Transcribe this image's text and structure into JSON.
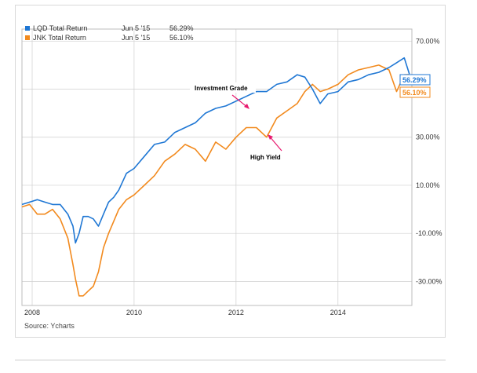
{
  "source_label": "Source: Ycharts",
  "legend": [
    {
      "name": "LQD Total Return",
      "date": "Jun 5 '15",
      "value": "56.29%",
      "color": "#1f77d4"
    },
    {
      "name": "JNK Total Return",
      "date": "Jun 5 '15",
      "value": "56.10%",
      "color": "#f28a1e"
    }
  ],
  "end_badges": {
    "lqd": "56.29%",
    "jnk": "56.10%"
  },
  "annotations": {
    "investment_grade": "Investment Grade",
    "high_yield": "High Yield"
  },
  "colors": {
    "lqd": "#1f77d4",
    "jnk": "#f28a1e",
    "arrow": "#e8196e",
    "grid": "#cfcfcf"
  },
  "chart_data": {
    "type": "line",
    "title": "",
    "xlabel": "",
    "ylabel": "",
    "x_range": [
      2007.8,
      2015.45
    ],
    "ylim": [
      -40,
      75
    ],
    "grid": true,
    "y_ticks": [
      70,
      50,
      30,
      10,
      -10,
      -30
    ],
    "y_tick_labels": [
      "70.00%",
      "",
      "30.00%",
      "10.00%",
      "-10.00%",
      "-30.00%"
    ],
    "x_ticks": [
      2008,
      2010,
      2012,
      2014
    ],
    "x_tick_labels": [
      "2008",
      "2010",
      "2012",
      "2014"
    ],
    "series": [
      {
        "name": "LQD Total Return",
        "x": [
          2007.8,
          2007.95,
          2008.1,
          2008.25,
          2008.4,
          2008.55,
          2008.7,
          2008.8,
          2008.85,
          2008.92,
          2009.0,
          2009.1,
          2009.2,
          2009.3,
          2009.4,
          2009.5,
          2009.6,
          2009.7,
          2009.85,
          2010.0,
          2010.2,
          2010.4,
          2010.6,
          2010.8,
          2011.0,
          2011.2,
          2011.4,
          2011.6,
          2011.8,
          2012.0,
          2012.2,
          2012.4,
          2012.6,
          2012.8,
          2013.0,
          2013.2,
          2013.35,
          2013.5,
          2013.65,
          2013.8,
          2014.0,
          2014.2,
          2014.4,
          2014.6,
          2014.8,
          2015.0,
          2015.15,
          2015.3,
          2015.4
        ],
        "y": [
          2,
          3,
          4,
          3,
          2,
          2,
          -2,
          -7,
          -14,
          -10,
          -3,
          -3,
          -4,
          -7,
          -2,
          3,
          5,
          8,
          15,
          17,
          22,
          27,
          28,
          32,
          34,
          36,
          40,
          42,
          43,
          45,
          47,
          49,
          49,
          52,
          53,
          56,
          55,
          50,
          44,
          48,
          49,
          53,
          54,
          56,
          57,
          59,
          61,
          63,
          56.3
        ]
      },
      {
        "name": "JNK Total Return",
        "x": [
          2007.8,
          2007.95,
          2008.1,
          2008.25,
          2008.4,
          2008.55,
          2008.7,
          2008.8,
          2008.85,
          2008.92,
          2009.0,
          2009.1,
          2009.2,
          2009.3,
          2009.4,
          2009.5,
          2009.6,
          2009.7,
          2009.85,
          2010.0,
          2010.2,
          2010.4,
          2010.6,
          2010.8,
          2011.0,
          2011.2,
          2011.4,
          2011.6,
          2011.8,
          2012.0,
          2012.2,
          2012.4,
          2012.6,
          2012.8,
          2013.0,
          2013.2,
          2013.35,
          2013.5,
          2013.65,
          2013.8,
          2014.0,
          2014.2,
          2014.4,
          2014.6,
          2014.8,
          2015.0,
          2015.15,
          2015.3,
          2015.4
        ],
        "y": [
          1,
          2,
          -2,
          -2,
          0,
          -4,
          -12,
          -23,
          -29,
          -36,
          -36,
          -34,
          -32,
          -26,
          -16,
          -10,
          -5,
          0,
          4,
          6,
          10,
          14,
          20,
          23,
          27,
          25,
          20,
          28,
          25,
          30,
          34,
          34,
          30,
          38,
          41,
          44,
          49,
          52,
          49,
          50,
          52,
          56,
          58,
          59,
          60,
          58,
          49,
          56,
          56.1
        ]
      }
    ]
  }
}
